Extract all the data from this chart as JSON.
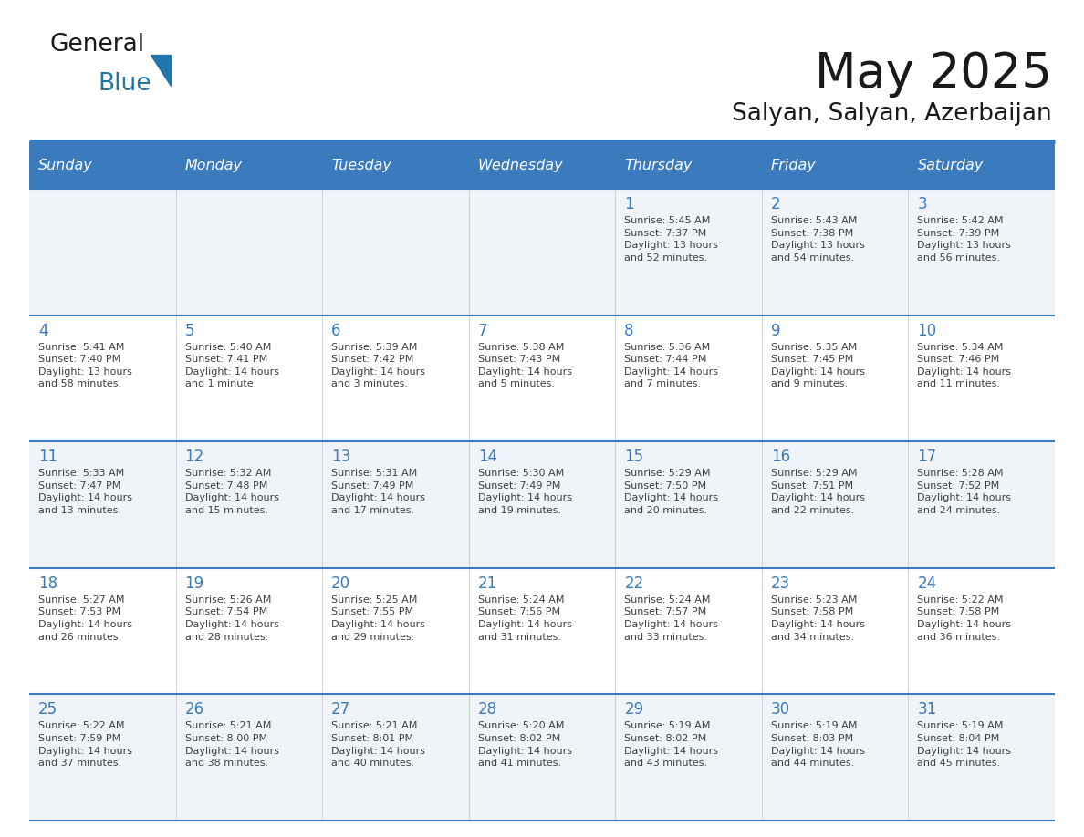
{
  "title": "May 2025",
  "subtitle": "Salyan, Salyan, Azerbaijan",
  "days_of_week": [
    "Sunday",
    "Monday",
    "Tuesday",
    "Wednesday",
    "Thursday",
    "Friday",
    "Saturday"
  ],
  "header_bg": "#3A7ABD",
  "header_text": "#FFFFFF",
  "row_bg_even": "#F0F4F8",
  "row_bg_odd": "#FFFFFF",
  "separator_color": "#3A7ABD",
  "day_number_color": "#3A7ABD",
  "text_color": "#404040",
  "title_color": "#1a1a1a",
  "logo_text_color": "#1a1a1a",
  "logo_blue_color": "#2176AE",
  "weeks": [
    {
      "days": [
        {
          "day": "",
          "info": ""
        },
        {
          "day": "",
          "info": ""
        },
        {
          "day": "",
          "info": ""
        },
        {
          "day": "",
          "info": ""
        },
        {
          "day": "1",
          "info": "Sunrise: 5:45 AM\nSunset: 7:37 PM\nDaylight: 13 hours\nand 52 minutes."
        },
        {
          "day": "2",
          "info": "Sunrise: 5:43 AM\nSunset: 7:38 PM\nDaylight: 13 hours\nand 54 minutes."
        },
        {
          "day": "3",
          "info": "Sunrise: 5:42 AM\nSunset: 7:39 PM\nDaylight: 13 hours\nand 56 minutes."
        }
      ]
    },
    {
      "days": [
        {
          "day": "4",
          "info": "Sunrise: 5:41 AM\nSunset: 7:40 PM\nDaylight: 13 hours\nand 58 minutes."
        },
        {
          "day": "5",
          "info": "Sunrise: 5:40 AM\nSunset: 7:41 PM\nDaylight: 14 hours\nand 1 minute."
        },
        {
          "day": "6",
          "info": "Sunrise: 5:39 AM\nSunset: 7:42 PM\nDaylight: 14 hours\nand 3 minutes."
        },
        {
          "day": "7",
          "info": "Sunrise: 5:38 AM\nSunset: 7:43 PM\nDaylight: 14 hours\nand 5 minutes."
        },
        {
          "day": "8",
          "info": "Sunrise: 5:36 AM\nSunset: 7:44 PM\nDaylight: 14 hours\nand 7 minutes."
        },
        {
          "day": "9",
          "info": "Sunrise: 5:35 AM\nSunset: 7:45 PM\nDaylight: 14 hours\nand 9 minutes."
        },
        {
          "day": "10",
          "info": "Sunrise: 5:34 AM\nSunset: 7:46 PM\nDaylight: 14 hours\nand 11 minutes."
        }
      ]
    },
    {
      "days": [
        {
          "day": "11",
          "info": "Sunrise: 5:33 AM\nSunset: 7:47 PM\nDaylight: 14 hours\nand 13 minutes."
        },
        {
          "day": "12",
          "info": "Sunrise: 5:32 AM\nSunset: 7:48 PM\nDaylight: 14 hours\nand 15 minutes."
        },
        {
          "day": "13",
          "info": "Sunrise: 5:31 AM\nSunset: 7:49 PM\nDaylight: 14 hours\nand 17 minutes."
        },
        {
          "day": "14",
          "info": "Sunrise: 5:30 AM\nSunset: 7:49 PM\nDaylight: 14 hours\nand 19 minutes."
        },
        {
          "day": "15",
          "info": "Sunrise: 5:29 AM\nSunset: 7:50 PM\nDaylight: 14 hours\nand 20 minutes."
        },
        {
          "day": "16",
          "info": "Sunrise: 5:29 AM\nSunset: 7:51 PM\nDaylight: 14 hours\nand 22 minutes."
        },
        {
          "day": "17",
          "info": "Sunrise: 5:28 AM\nSunset: 7:52 PM\nDaylight: 14 hours\nand 24 minutes."
        }
      ]
    },
    {
      "days": [
        {
          "day": "18",
          "info": "Sunrise: 5:27 AM\nSunset: 7:53 PM\nDaylight: 14 hours\nand 26 minutes."
        },
        {
          "day": "19",
          "info": "Sunrise: 5:26 AM\nSunset: 7:54 PM\nDaylight: 14 hours\nand 28 minutes."
        },
        {
          "day": "20",
          "info": "Sunrise: 5:25 AM\nSunset: 7:55 PM\nDaylight: 14 hours\nand 29 minutes."
        },
        {
          "day": "21",
          "info": "Sunrise: 5:24 AM\nSunset: 7:56 PM\nDaylight: 14 hours\nand 31 minutes."
        },
        {
          "day": "22",
          "info": "Sunrise: 5:24 AM\nSunset: 7:57 PM\nDaylight: 14 hours\nand 33 minutes."
        },
        {
          "day": "23",
          "info": "Sunrise: 5:23 AM\nSunset: 7:58 PM\nDaylight: 14 hours\nand 34 minutes."
        },
        {
          "day": "24",
          "info": "Sunrise: 5:22 AM\nSunset: 7:58 PM\nDaylight: 14 hours\nand 36 minutes."
        }
      ]
    },
    {
      "days": [
        {
          "day": "25",
          "info": "Sunrise: 5:22 AM\nSunset: 7:59 PM\nDaylight: 14 hours\nand 37 minutes."
        },
        {
          "day": "26",
          "info": "Sunrise: 5:21 AM\nSunset: 8:00 PM\nDaylight: 14 hours\nand 38 minutes."
        },
        {
          "day": "27",
          "info": "Sunrise: 5:21 AM\nSunset: 8:01 PM\nDaylight: 14 hours\nand 40 minutes."
        },
        {
          "day": "28",
          "info": "Sunrise: 5:20 AM\nSunset: 8:02 PM\nDaylight: 14 hours\nand 41 minutes."
        },
        {
          "day": "29",
          "info": "Sunrise: 5:19 AM\nSunset: 8:02 PM\nDaylight: 14 hours\nand 43 minutes."
        },
        {
          "day": "30",
          "info": "Sunrise: 5:19 AM\nSunset: 8:03 PM\nDaylight: 14 hours\nand 44 minutes."
        },
        {
          "day": "31",
          "info": "Sunrise: 5:19 AM\nSunset: 8:04 PM\nDaylight: 14 hours\nand 45 minutes."
        }
      ]
    }
  ]
}
